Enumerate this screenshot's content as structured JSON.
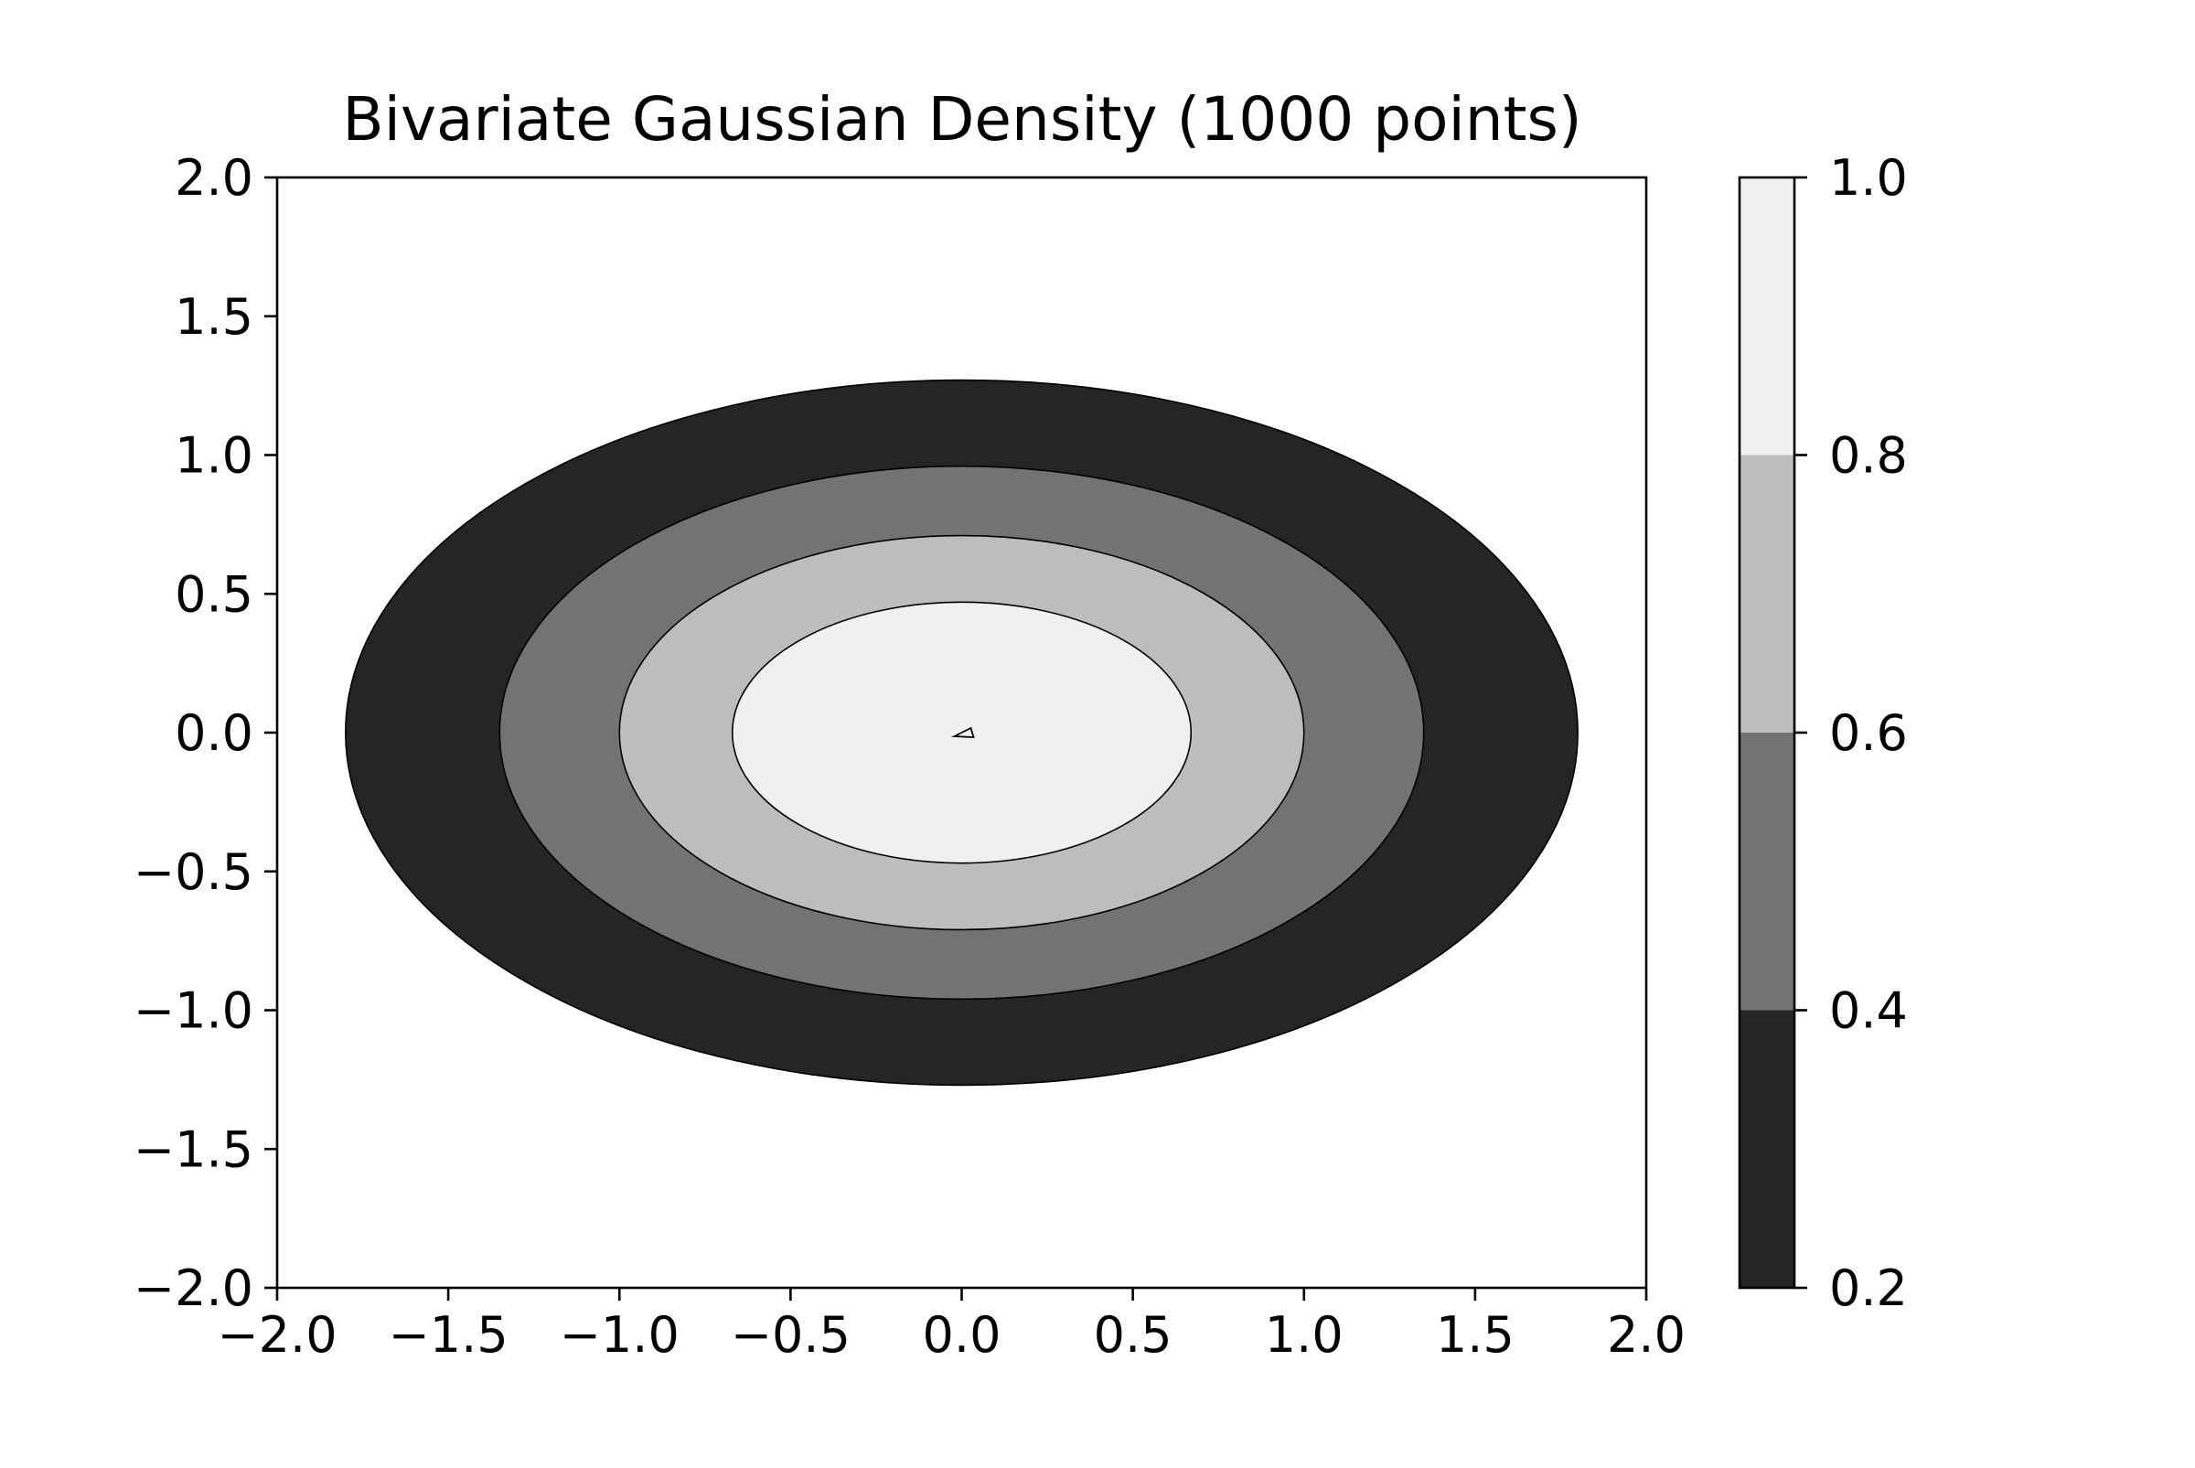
{
  "chart_data": {
    "type": "contour",
    "title": "Bivariate Gaussian Density (1000 points)",
    "xlabel": "",
    "ylabel": "",
    "xlim": [
      -2.0,
      2.0
    ],
    "ylim": [
      -2.0,
      2.0
    ],
    "xticks": [
      "−2.0",
      "−1.5",
      "−1.0",
      "−0.5",
      "0.0",
      "0.5",
      "1.0",
      "1.5",
      "2.0"
    ],
    "yticks": [
      "−2.0",
      "−1.5",
      "−1.0",
      "−0.5",
      "0.0",
      "0.5",
      "1.0",
      "1.5",
      "2.0"
    ],
    "grid": false,
    "colorbar": {
      "range": [
        0.2,
        1.0
      ],
      "ticks": [
        "0.2",
        "0.4",
        "0.6",
        "0.8",
        "1.0"
      ],
      "bands": [
        {
          "from": 0.2,
          "to": 0.4,
          "color": "#252525"
        },
        {
          "from": 0.4,
          "to": 0.6,
          "color": "#737373"
        },
        {
          "from": 0.6,
          "to": 0.8,
          "color": "#bdbdbd"
        },
        {
          "from": 0.8,
          "to": 1.0,
          "color": "#f0f0f0"
        }
      ]
    },
    "contours": [
      {
        "level": 0.2,
        "center": [
          0.0,
          0.0
        ],
        "semi_axis_x": 1.8,
        "semi_axis_y": 1.27
      },
      {
        "level": 0.4,
        "center": [
          0.0,
          0.0
        ],
        "semi_axis_x": 1.35,
        "semi_axis_y": 0.96
      },
      {
        "level": 0.6,
        "center": [
          0.0,
          0.0
        ],
        "semi_axis_x": 1.0,
        "semi_axis_y": 0.71
      },
      {
        "level": 0.8,
        "center": [
          0.0,
          0.0
        ],
        "semi_axis_x": 0.67,
        "semi_axis_y": 0.47
      }
    ],
    "peak_marker": {
      "x": 0.0,
      "y": 0.0
    }
  }
}
